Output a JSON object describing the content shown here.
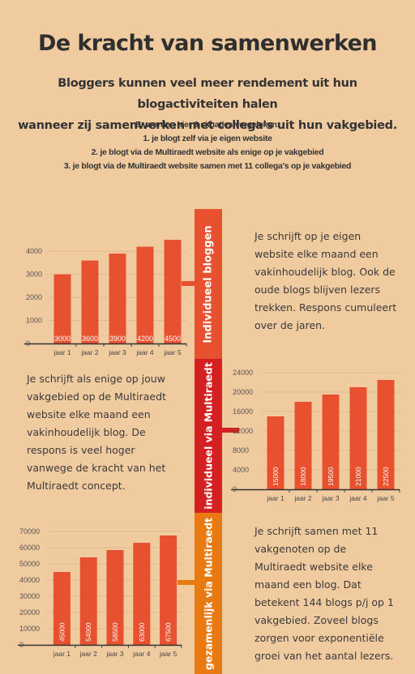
{
  "header": {
    "title": "De kracht van samenwerken",
    "subtitle_line1": "Bloggers kunnen veel meer rendement uit hun blogactiviteiten halen",
    "subtitle_line2": "wanneer zij samenwerken met collega's uit hun vakgebied.",
    "intro_line1": "Er worden hier 3 situaties vergeleken:",
    "intro_line2": "1. je blogt zelf via je eigen website",
    "intro_line3": "2. je blogt via de Multiraedt website als enige op je vakgebied",
    "intro_line4": "3. je blogt via de Multiraedt website samen met 11 collega's op je vakgebied"
  },
  "sections": [
    {
      "band_label": "Individueel bloggen",
      "color": "#e8512f",
      "description": [
        "Je schrijft op je eigen",
        "website elke maand een",
        "vakinhoudelijk blog. Ook de",
        "oude blogs blijven lezers",
        "trekken. Respons cumuleert",
        "over de jaren."
      ]
    },
    {
      "band_label": "individueel  via Multiraedt",
      "color": "#d42020",
      "description": [
        "Je schrijft als enige op jouw",
        "vakgebied op de Multiraedt",
        "website elke maand een",
        "vakinhoudelijk blog. De",
        "respons is veel hoger",
        "vanwege de kracht van het",
        "Multiraedt concept."
      ]
    },
    {
      "band_label": "gezamenlijk via Multiraedt",
      "color": "#e97a12",
      "description": [
        "Je schrijft samen met 11",
        "vakgenoten op de",
        "Multiraedt  website elke",
        "maand een blog. Dat",
        "betekent 144 blogs p/j op 1",
        "vakgebied. Zoveel blogs",
        "zorgen voor exponentiële",
        "groei van het aantal lezers."
      ]
    }
  ],
  "chart_data": [
    {
      "type": "bar",
      "categories": [
        "jaar 1",
        "jaar 2",
        "jaar 3",
        "jaar 4",
        "jaar 5"
      ],
      "values": [
        3000,
        3600,
        3900,
        4200,
        4500
      ],
      "data_labels": [
        "3000",
        "3600",
        "3900",
        "4200",
        "4500"
      ],
      "yticks": [
        0,
        1000,
        2000,
        3000,
        4000
      ],
      "ylim": [
        0,
        4500
      ],
      "bar_color": "#e8512f",
      "grid": true
    },
    {
      "type": "bar",
      "categories": [
        "jaar 1",
        "jaar 2",
        "jaar 3",
        "jaar 4",
        "jaar 5"
      ],
      "values": [
        15000,
        18000,
        19500,
        21000,
        22500
      ],
      "data_labels": [
        "15000",
        "18000",
        "19500",
        "21000",
        "22500"
      ],
      "yticks": [
        0,
        4000,
        8000,
        12000,
        16000,
        20000,
        24000
      ],
      "ylim": [
        0,
        24000
      ],
      "bar_color": "#e8512f",
      "grid": true
    },
    {
      "type": "bar",
      "categories": [
        "jaar 1",
        "jaar 2",
        "jaar 3",
        "jaar 4",
        "jaar 5"
      ],
      "values": [
        45000,
        54000,
        58500,
        63000,
        67500
      ],
      "data_labels": [
        "45000",
        "54000",
        "58500",
        "63000",
        "67500"
      ],
      "yticks": [
        0,
        10000,
        20000,
        30000,
        40000,
        50000,
        60000,
        70000
      ],
      "ylim": [
        0,
        70000
      ],
      "bar_color": "#e8512f",
      "grid": true
    }
  ]
}
